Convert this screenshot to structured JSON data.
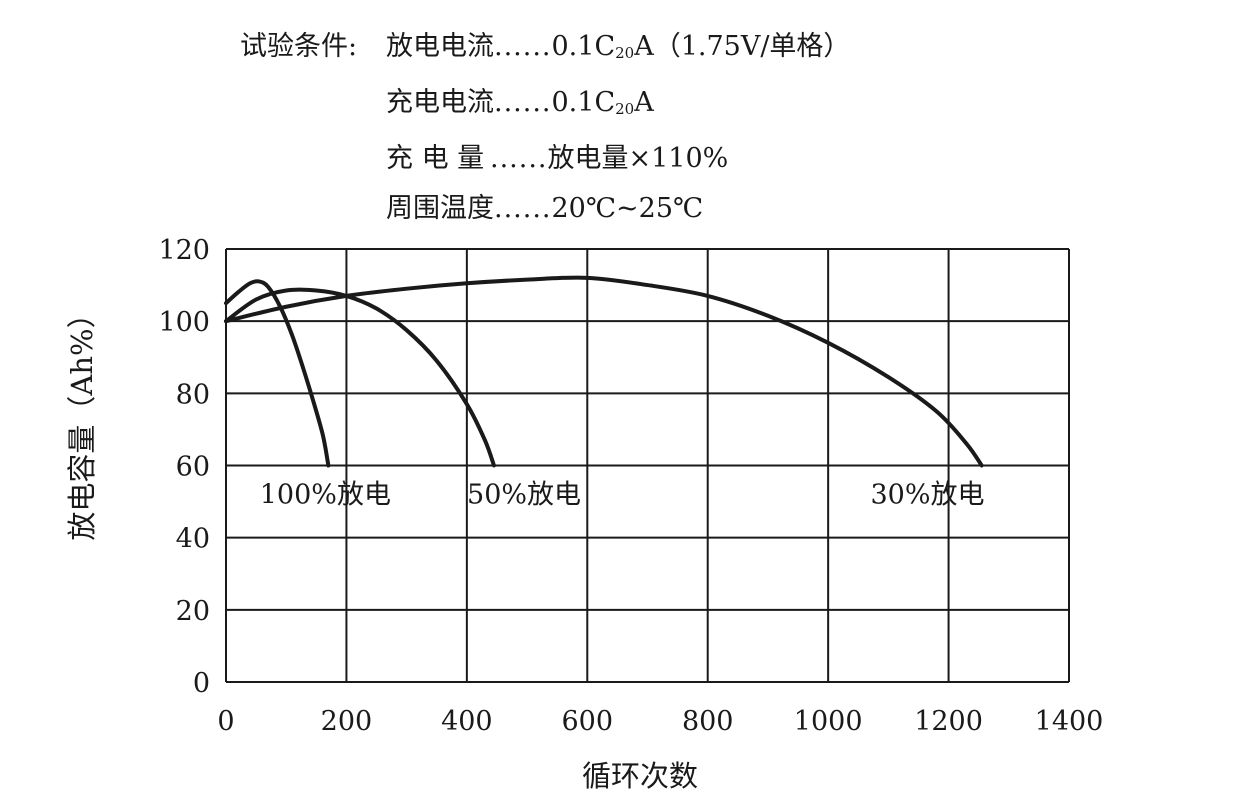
{
  "conditions": {
    "prefix": "试验条件:",
    "dots": "......",
    "rows": [
      {
        "label": "放电电流",
        "value_pre": "0.1C",
        "value_sub": "20",
        "value_post": "A（1.75V/单格）"
      },
      {
        "label": "充电电流",
        "value_pre": "0.1C",
        "value_sub": "20",
        "value_post": "A"
      },
      {
        "label": "充 电 量",
        "value_pre": "放电量×110%",
        "value_sub": "",
        "value_post": ""
      },
      {
        "label": "周围温度",
        "value_pre": "20℃~25℃",
        "value_sub": "",
        "value_post": ""
      }
    ]
  },
  "chart_data": {
    "type": "line",
    "title": "",
    "xlabel": "循环次数",
    "ylabel": "放电容量（Ah%）",
    "xlim": [
      0,
      1400
    ],
    "ylim": [
      0,
      120
    ],
    "xticks": [
      0,
      200,
      400,
      600,
      800,
      1000,
      1200,
      1400
    ],
    "yticks": [
      0,
      20,
      40,
      60,
      80,
      100,
      120
    ],
    "grid": true,
    "series": [
      {
        "name": "100%放电",
        "x": [
          0,
          20,
          40,
          55,
          70,
          90,
          110,
          130,
          150,
          160,
          165,
          168,
          170
        ],
        "y": [
          105,
          108,
          110.5,
          111,
          109.5,
          104,
          96,
          86,
          75,
          69,
          65,
          62,
          60
        ]
      },
      {
        "name": "50%放电",
        "x": [
          0,
          50,
          100,
          150,
          200,
          250,
          300,
          350,
          400,
          430,
          445
        ],
        "y": [
          100,
          106,
          108.5,
          108.5,
          107,
          103.5,
          97.5,
          89,
          77,
          67,
          60
        ]
      },
      {
        "name": "30%放电",
        "x": [
          0,
          100,
          200,
          300,
          400,
          500,
          600,
          700,
          800,
          900,
          1000,
          1100,
          1180,
          1230,
          1255
        ],
        "y": [
          100,
          104,
          107,
          109,
          110.5,
          111.5,
          112,
          110,
          107,
          101.5,
          94,
          84.5,
          75,
          66,
          60
        ]
      }
    ]
  }
}
